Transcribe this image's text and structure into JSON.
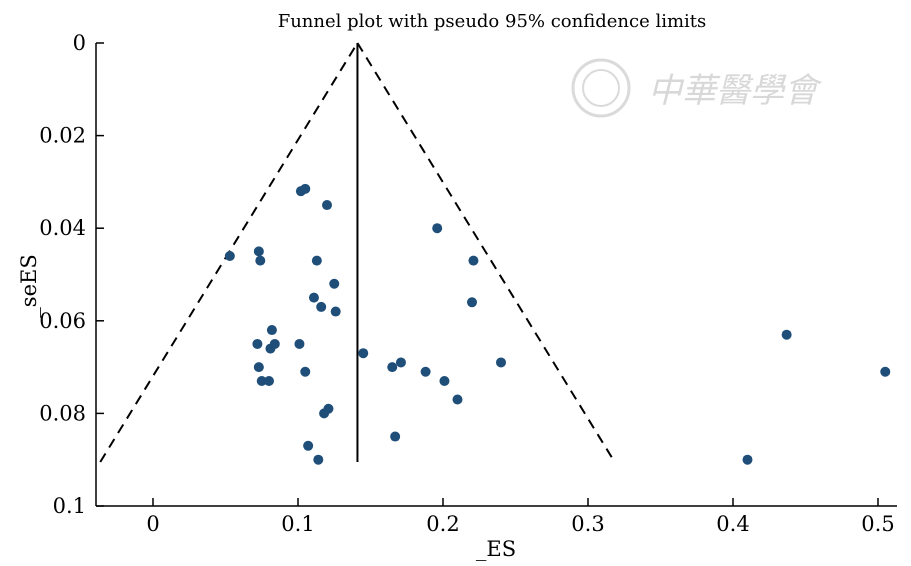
{
  "chart_data": {
    "type": "scatter",
    "title": "Funnel plot with pseudo 95% confidence limits",
    "xlabel": "_ES",
    "ylabel": "_seES",
    "xlim": [
      -0.04,
      0.51
    ],
    "ylim": [
      0.1,
      0
    ],
    "y_reversed": true,
    "x_ticks": [
      "0",
      "0.1",
      "0.2",
      "0.3",
      "0.4",
      "0.5"
    ],
    "x_tick_values": [
      0,
      0.1,
      0.2,
      0.3,
      0.4,
      0.5
    ],
    "y_ticks": [
      "0",
      "0.02",
      "0.04",
      "0.06",
      "0.08",
      "0.1"
    ],
    "y_tick_values": [
      0,
      0.02,
      0.04,
      0.06,
      0.08,
      0.1
    ],
    "grid": false,
    "pooled_effect": 0.141,
    "funnel_limit_se": 0.0905,
    "point_color": "#1f4e79",
    "points": [
      {
        "x": 0.053,
        "y": 0.046
      },
      {
        "x": 0.073,
        "y": 0.045
      },
      {
        "x": 0.074,
        "y": 0.047
      },
      {
        "x": 0.072,
        "y": 0.065
      },
      {
        "x": 0.073,
        "y": 0.07
      },
      {
        "x": 0.075,
        "y": 0.073
      },
      {
        "x": 0.08,
        "y": 0.073
      },
      {
        "x": 0.081,
        "y": 0.066
      },
      {
        "x": 0.082,
        "y": 0.062
      },
      {
        "x": 0.084,
        "y": 0.065
      },
      {
        "x": 0.101,
        "y": 0.065
      },
      {
        "x": 0.102,
        "y": 0.032
      },
      {
        "x": 0.105,
        "y": 0.0315
      },
      {
        "x": 0.105,
        "y": 0.071
      },
      {
        "x": 0.107,
        "y": 0.087
      },
      {
        "x": 0.111,
        "y": 0.055
      },
      {
        "x": 0.113,
        "y": 0.047
      },
      {
        "x": 0.114,
        "y": 0.09
      },
      {
        "x": 0.116,
        "y": 0.057
      },
      {
        "x": 0.118,
        "y": 0.08
      },
      {
        "x": 0.12,
        "y": 0.035
      },
      {
        "x": 0.121,
        "y": 0.079
      },
      {
        "x": 0.125,
        "y": 0.052
      },
      {
        "x": 0.126,
        "y": 0.058
      },
      {
        "x": 0.145,
        "y": 0.067
      },
      {
        "x": 0.165,
        "y": 0.07
      },
      {
        "x": 0.167,
        "y": 0.085
      },
      {
        "x": 0.171,
        "y": 0.069
      },
      {
        "x": 0.188,
        "y": 0.071
      },
      {
        "x": 0.196,
        "y": 0.04
      },
      {
        "x": 0.201,
        "y": 0.073
      },
      {
        "x": 0.21,
        "y": 0.077
      },
      {
        "x": 0.22,
        "y": 0.056
      },
      {
        "x": 0.221,
        "y": 0.047
      },
      {
        "x": 0.24,
        "y": 0.069
      },
      {
        "x": 0.41,
        "y": 0.09
      },
      {
        "x": 0.437,
        "y": 0.063
      },
      {
        "x": 0.505,
        "y": 0.071
      }
    ]
  },
  "watermark": {
    "text": "中華醫學會",
    "color": "#d8d8d8"
  }
}
